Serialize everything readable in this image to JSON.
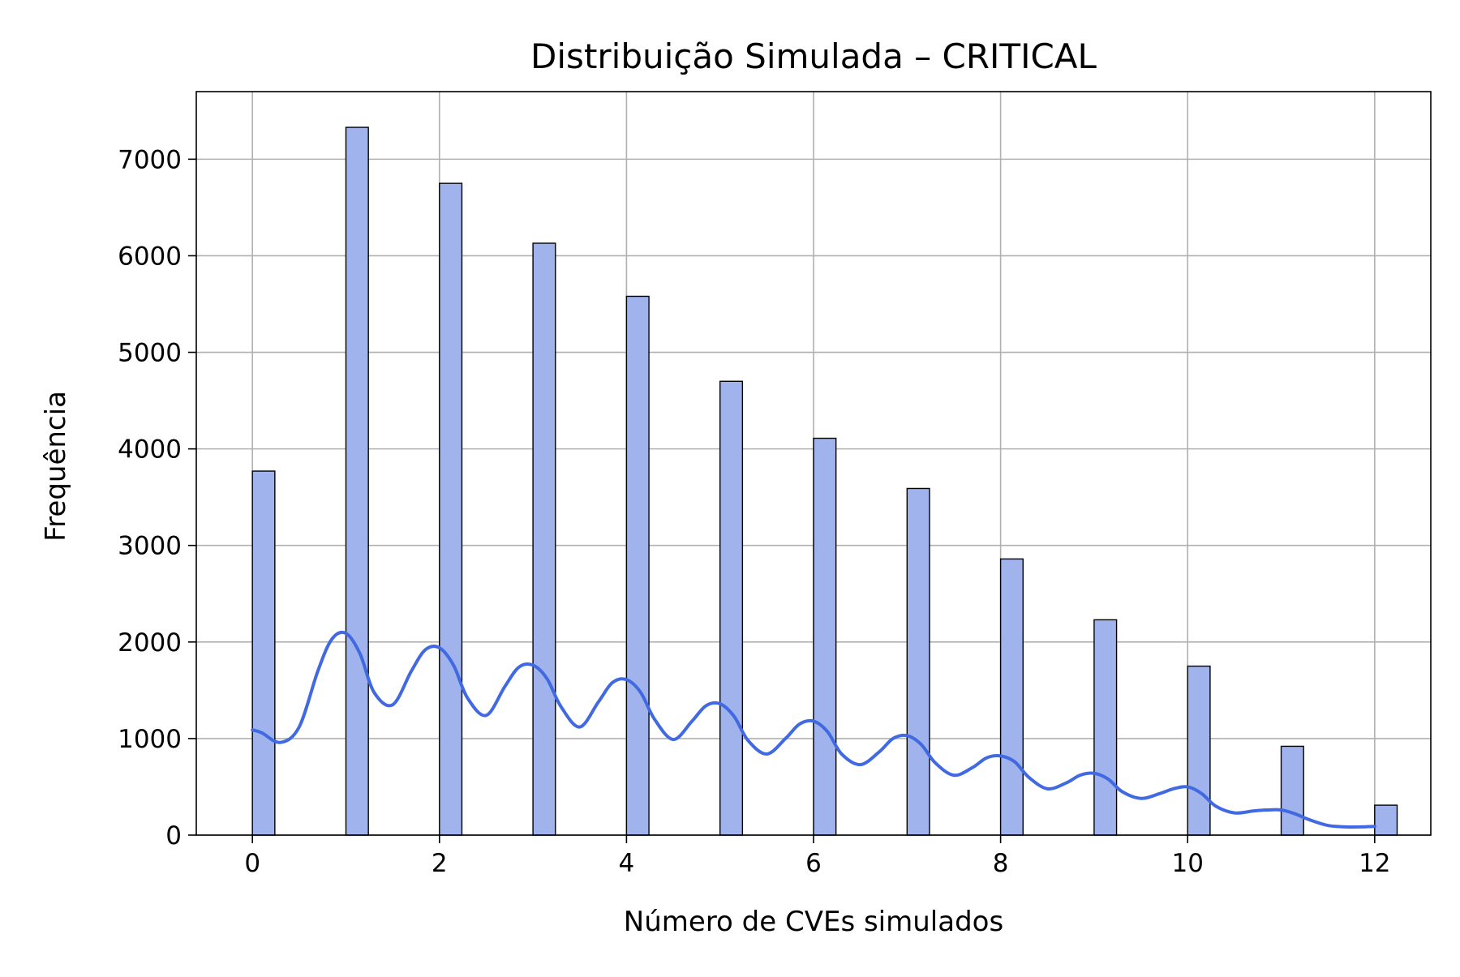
{
  "chart_data": {
    "type": "bar",
    "title": "Distribuição Simulada – CRITICAL",
    "xlabel": "Número de CVEs simulados",
    "ylabel": "Frequência",
    "x": [
      0,
      1,
      2,
      3,
      4,
      5,
      6,
      7,
      8,
      9,
      10,
      11,
      12
    ],
    "values": [
      3770,
      7330,
      6750,
      6130,
      5580,
      4700,
      4110,
      3590,
      2860,
      2230,
      1750,
      920,
      310
    ],
    "xlim": [
      -0.6,
      12.6
    ],
    "ylim": [
      0,
      7700
    ],
    "xticks": [
      0,
      2,
      4,
      6,
      8,
      10,
      12
    ],
    "yticks": [
      0,
      1000,
      2000,
      3000,
      4000,
      5000,
      6000,
      7000
    ],
    "bar_width": 0.24,
    "grid": true,
    "kde": {
      "x": [
        0,
        0.1,
        0.3,
        0.5,
        0.7,
        0.85,
        1.0,
        1.15,
        1.3,
        1.5,
        1.7,
        1.85,
        2.0,
        2.15,
        2.3,
        2.5,
        2.7,
        2.85,
        3.0,
        3.15,
        3.3,
        3.5,
        3.7,
        3.85,
        4.0,
        4.15,
        4.3,
        4.5,
        4.7,
        4.85,
        5.0,
        5.15,
        5.3,
        5.5,
        5.7,
        5.85,
        6.0,
        6.15,
        6.3,
        6.5,
        6.7,
        6.85,
        7.0,
        7.15,
        7.3,
        7.5,
        7.7,
        7.85,
        8.0,
        8.15,
        8.3,
        8.5,
        8.7,
        8.85,
        9.0,
        9.15,
        9.3,
        9.5,
        9.7,
        9.85,
        10.0,
        10.15,
        10.3,
        10.5,
        10.7,
        10.85,
        11.0,
        11.15,
        11.3,
        11.5,
        11.7,
        11.85,
        12.0
      ],
      "y": [
        1090,
        1060,
        960,
        1120,
        1700,
        2030,
        2090,
        1880,
        1480,
        1350,
        1700,
        1920,
        1940,
        1760,
        1420,
        1240,
        1540,
        1740,
        1760,
        1620,
        1330,
        1120,
        1380,
        1580,
        1610,
        1480,
        1200,
        990,
        1180,
        1340,
        1360,
        1230,
        980,
        840,
        1000,
        1150,
        1180,
        1070,
        840,
        730,
        860,
        1000,
        1030,
        940,
        750,
        620,
        700,
        800,
        820,
        760,
        600,
        480,
        540,
        620,
        640,
        580,
        450,
        380,
        430,
        480,
        500,
        430,
        300,
        230,
        250,
        260,
        260,
        220,
        160,
        100,
        85,
        85,
        90
      ]
    },
    "colors": {
      "bar_fill": "#a0b3ec",
      "bar_edge": "#000000",
      "kde_line": "#4169e1",
      "grid": "#b0b0b0"
    }
  }
}
